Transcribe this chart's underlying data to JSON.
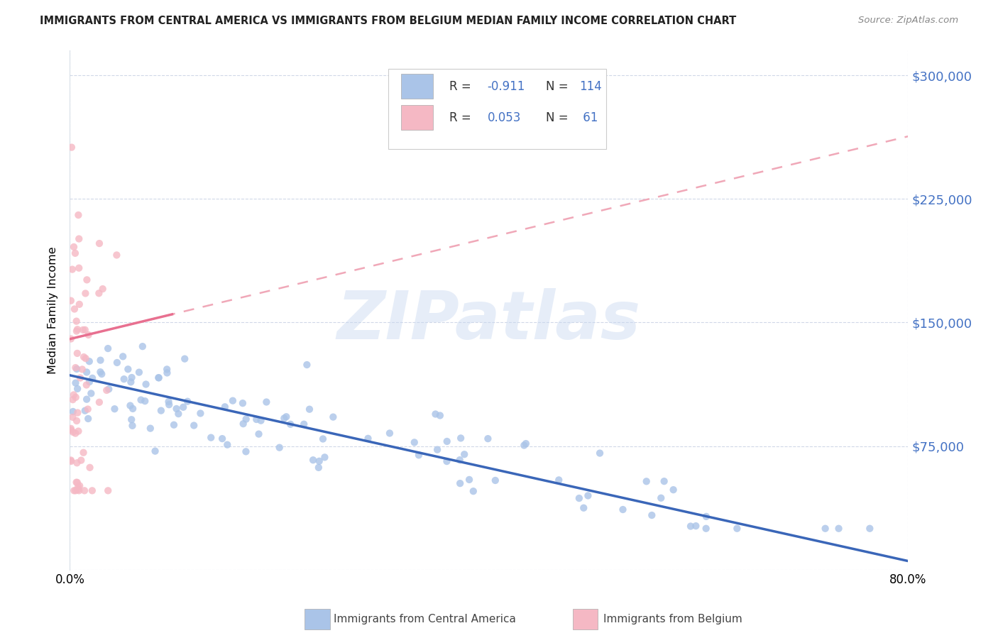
{
  "title": "IMMIGRANTS FROM CENTRAL AMERICA VS IMMIGRANTS FROM BELGIUM MEDIAN FAMILY INCOME CORRELATION CHART",
  "source": "Source: ZipAtlas.com",
  "ylabel": "Median Family Income",
  "watermark": "ZIPatlas",
  "blue_R": -0.911,
  "blue_N": 114,
  "pink_R": 0.053,
  "pink_N": 61,
  "blue_color": "#aac4e8",
  "pink_color": "#f5b8c4",
  "blue_line_color": "#3a66b8",
  "pink_line_color": "#e87090",
  "pink_dash_color": "#f0a8b8",
  "axis_color": "#4472c4",
  "legend_text_color": "#4472c4",
  "y_ticks": [
    0,
    75000,
    150000,
    225000,
    300000
  ],
  "y_tick_labels": [
    "",
    "$75,000",
    "$150,000",
    "$225,000",
    "$300,000"
  ],
  "x_min": 0.0,
  "x_max": 0.82,
  "y_min": 0,
  "y_max": 315000,
  "blue_scatter_seed": 42,
  "pink_scatter_seed": 7
}
